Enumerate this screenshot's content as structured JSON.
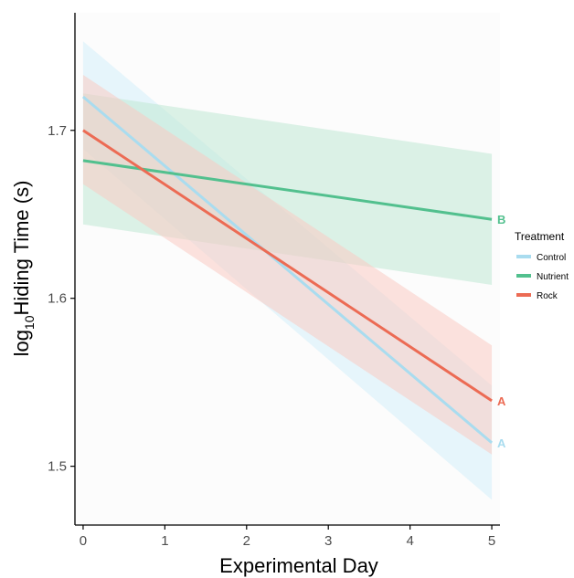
{
  "chart_data": {
    "type": "line",
    "xlabel": "Experimental Day",
    "ylabel_prefix": "log",
    "ylabel_sub": "10",
    "ylabel_rest": "Hiding Time (s)",
    "xlim": [
      -0.1,
      5.1
    ],
    "ylim": [
      1.465,
      1.77
    ],
    "xticks": [
      0,
      1,
      2,
      3,
      4,
      5
    ],
    "yticks": [
      1.5,
      1.6,
      1.7
    ],
    "ytick_labels": [
      "1.5",
      "1.6",
      "1.7"
    ],
    "grid": false,
    "legend": {
      "title": "Treatment",
      "placement": "right",
      "entries": [
        "Control",
        "Nutrient",
        "Rock"
      ]
    },
    "series": [
      {
        "name": "Control",
        "color": "#a9dcef",
        "fill": "#d4eefa",
        "x": [
          0,
          5
        ],
        "y": [
          1.72,
          1.514
        ],
        "ci_lower": [
          1.689,
          1.48
        ],
        "ci_upper": [
          1.753,
          1.548
        ],
        "end_label": "A"
      },
      {
        "name": "Nutrient",
        "color": "#52c08e",
        "fill": "#bfe8d3",
        "x": [
          0,
          5
        ],
        "y": [
          1.682,
          1.647
        ],
        "ci_lower": [
          1.644,
          1.608
        ],
        "ci_upper": [
          1.722,
          1.686
        ],
        "end_label": "B"
      },
      {
        "name": "Rock",
        "color": "#ec6b54",
        "fill": "#f9cbc2",
        "x": [
          0,
          5
        ],
        "y": [
          1.7,
          1.539
        ],
        "ci_lower": [
          1.668,
          1.507
        ],
        "ci_upper": [
          1.733,
          1.572
        ],
        "end_label": "A"
      }
    ]
  }
}
